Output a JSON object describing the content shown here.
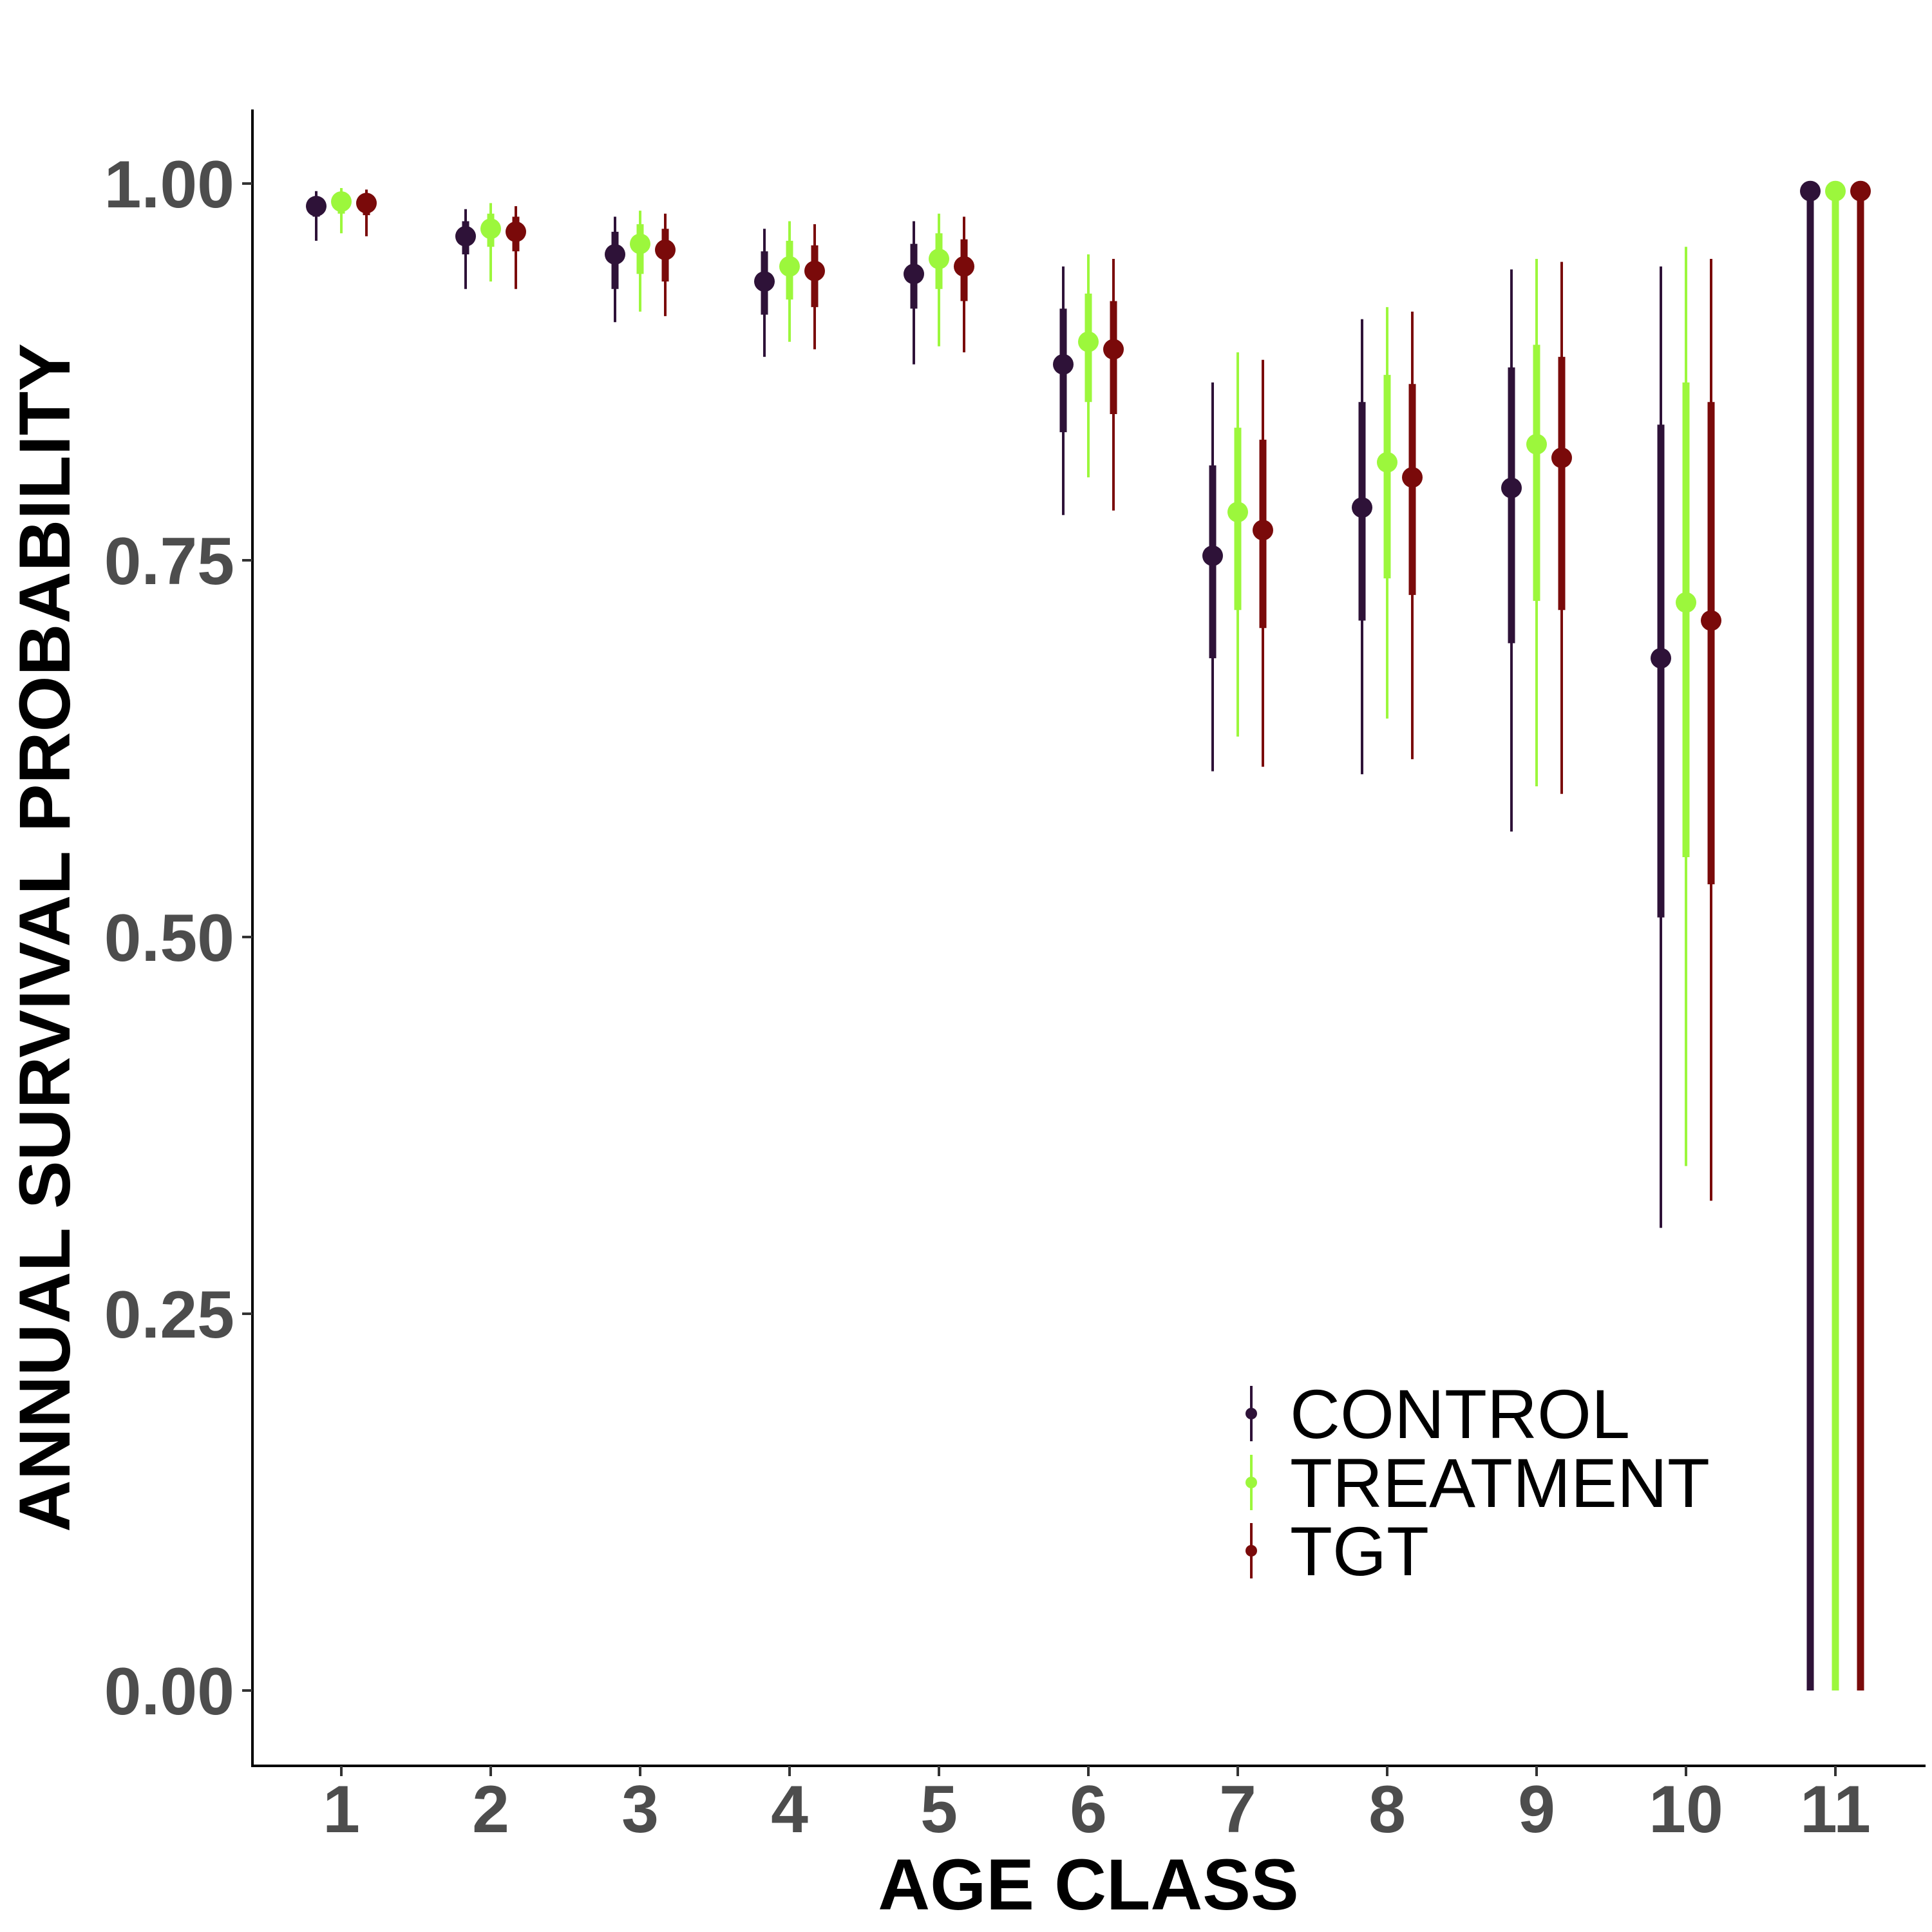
{
  "chart_data": {
    "type": "pointrange",
    "xlabel": "AGE CLASS",
    "ylabel": "ANNUAL SURVIVAL PROBABILITY",
    "categories": [
      "1",
      "2",
      "3",
      "4",
      "5",
      "6",
      "7",
      "8",
      "9",
      "10",
      "11"
    ],
    "ylim": [
      -0.05,
      1.05
    ],
    "y_ticks": [
      "0.00",
      "0.25",
      "0.50",
      "0.75",
      "1.00"
    ],
    "grid": false,
    "legend_position": "bottom-right",
    "series": [
      {
        "name": "CONTROL",
        "color": "#2e1238",
        "points": [
          {
            "x": "1",
            "y": 0.985,
            "inner": [
              0.978,
              0.99
            ],
            "outer": [
              0.962,
              0.995
            ]
          },
          {
            "x": "2",
            "y": 0.965,
            "inner": [
              0.953,
              0.975
            ],
            "outer": [
              0.93,
              0.983
            ]
          },
          {
            "x": "3",
            "y": 0.953,
            "inner": [
              0.93,
              0.968
            ],
            "outer": [
              0.908,
              0.978
            ]
          },
          {
            "x": "4",
            "y": 0.935,
            "inner": [
              0.913,
              0.955
            ],
            "outer": [
              0.885,
              0.97
            ]
          },
          {
            "x": "5",
            "y": 0.94,
            "inner": [
              0.917,
              0.96
            ],
            "outer": [
              0.88,
              0.975
            ]
          },
          {
            "x": "6",
            "y": 0.88,
            "inner": [
              0.835,
              0.917
            ],
            "outer": [
              0.78,
              0.945
            ]
          },
          {
            "x": "7",
            "y": 0.753,
            "inner": [
              0.685,
              0.813
            ],
            "outer": [
              0.61,
              0.868
            ]
          },
          {
            "x": "8",
            "y": 0.785,
            "inner": [
              0.71,
              0.855
            ],
            "outer": [
              0.608,
              0.91
            ]
          },
          {
            "x": "9",
            "y": 0.798,
            "inner": [
              0.695,
              0.878
            ],
            "outer": [
              0.57,
              0.943
            ]
          },
          {
            "x": "10",
            "y": 0.685,
            "inner": [
              0.513,
              0.84
            ],
            "outer": [
              0.307,
              0.945
            ]
          },
          {
            "x": "11",
            "y": 0.995,
            "inner": [
              0.0,
              0.995
            ],
            "outer": [
              0.0,
              0.995
            ]
          }
        ]
      },
      {
        "name": "TREATMENT",
        "color": "#9cf73c",
        "points": [
          {
            "x": "1",
            "y": 0.988,
            "inner": [
              0.98,
              0.993
            ],
            "outer": [
              0.967,
              0.997
            ]
          },
          {
            "x": "2",
            "y": 0.97,
            "inner": [
              0.958,
              0.98
            ],
            "outer": [
              0.935,
              0.987
            ]
          },
          {
            "x": "3",
            "y": 0.96,
            "inner": [
              0.94,
              0.973
            ],
            "outer": [
              0.915,
              0.982
            ]
          },
          {
            "x": "4",
            "y": 0.945,
            "inner": [
              0.923,
              0.962
            ],
            "outer": [
              0.895,
              0.975
            ]
          },
          {
            "x": "5",
            "y": 0.95,
            "inner": [
              0.93,
              0.967
            ],
            "outer": [
              0.892,
              0.98
            ]
          },
          {
            "x": "6",
            "y": 0.895,
            "inner": [
              0.855,
              0.927
            ],
            "outer": [
              0.805,
              0.953
            ]
          },
          {
            "x": "7",
            "y": 0.782,
            "inner": [
              0.717,
              0.838
            ],
            "outer": [
              0.633,
              0.888
            ]
          },
          {
            "x": "8",
            "y": 0.815,
            "inner": [
              0.738,
              0.873
            ],
            "outer": [
              0.645,
              0.918
            ]
          },
          {
            "x": "9",
            "y": 0.827,
            "inner": [
              0.723,
              0.893
            ],
            "outer": [
              0.6,
              0.95
            ]
          },
          {
            "x": "10",
            "y": 0.722,
            "inner": [
              0.553,
              0.868
            ],
            "outer": [
              0.348,
              0.958
            ]
          },
          {
            "x": "11",
            "y": 0.995,
            "inner": [
              0.0,
              0.995
            ],
            "outer": [
              0.0,
              0.995
            ]
          }
        ]
      },
      {
        "name": "TGT",
        "color": "#7a0a0a",
        "points": [
          {
            "x": "1",
            "y": 0.987,
            "inner": [
              0.979,
              0.992
            ],
            "outer": [
              0.965,
              0.996
            ]
          },
          {
            "x": "2",
            "y": 0.968,
            "inner": [
              0.955,
              0.978
            ],
            "outer": [
              0.93,
              0.985
            ]
          },
          {
            "x": "3",
            "y": 0.956,
            "inner": [
              0.935,
              0.97
            ],
            "outer": [
              0.912,
              0.98
            ]
          },
          {
            "x": "4",
            "y": 0.942,
            "inner": [
              0.918,
              0.959
            ],
            "outer": [
              0.89,
              0.973
            ]
          },
          {
            "x": "5",
            "y": 0.945,
            "inner": [
              0.922,
              0.963
            ],
            "outer": [
              0.888,
              0.978
            ]
          },
          {
            "x": "6",
            "y": 0.89,
            "inner": [
              0.847,
              0.922
            ],
            "outer": [
              0.783,
              0.95
            ]
          },
          {
            "x": "7",
            "y": 0.77,
            "inner": [
              0.705,
              0.83
            ],
            "outer": [
              0.613,
              0.883
            ]
          },
          {
            "x": "8",
            "y": 0.805,
            "inner": [
              0.727,
              0.867
            ],
            "outer": [
              0.618,
              0.915
            ]
          },
          {
            "x": "9",
            "y": 0.818,
            "inner": [
              0.717,
              0.885
            ],
            "outer": [
              0.595,
              0.948
            ]
          },
          {
            "x": "10",
            "y": 0.71,
            "inner": [
              0.535,
              0.855
            ],
            "outer": [
              0.325,
              0.95
            ]
          },
          {
            "x": "11",
            "y": 0.995,
            "inner": [
              0.0,
              0.995
            ],
            "outer": [
              0.0,
              0.995
            ]
          }
        ]
      }
    ]
  }
}
